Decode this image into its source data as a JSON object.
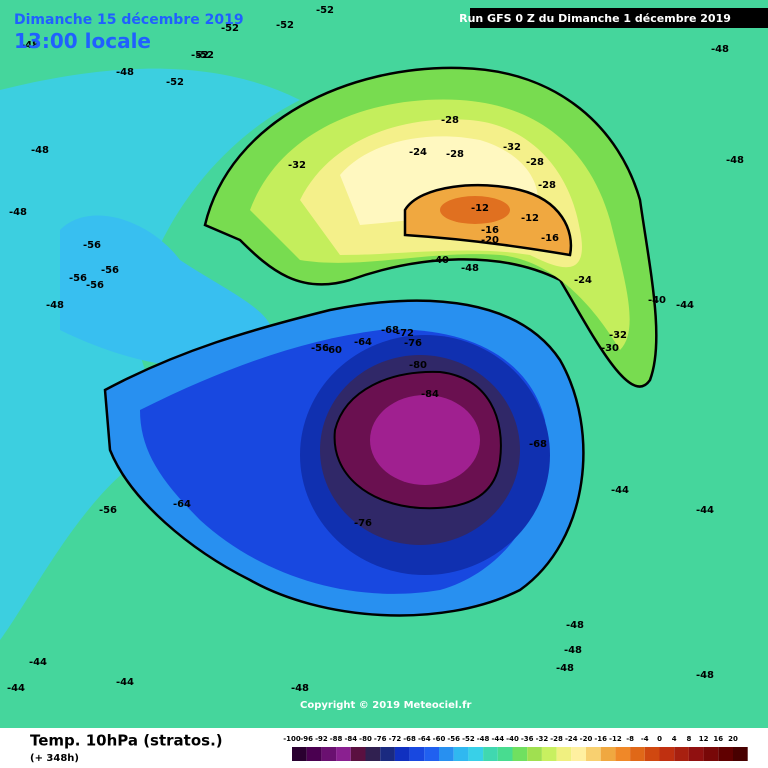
{
  "header": {
    "date": "Dimanche 15 décembre 2019",
    "time": "13:00 locale",
    "run": "Run GFS 0 Z du Dimanche 1 décembre 2019"
  },
  "map": {
    "copyright": "Copyright © 2019 Meteociel.fr",
    "labels": [
      "-52",
      "-52",
      "-52",
      "-48",
      "-48",
      "-48",
      "-48",
      "-48",
      "-52",
      "-52",
      "-52",
      "-56",
      "-56",
      "-56",
      "-56",
      "-28",
      "-24",
      "-28",
      "-32",
      "-32",
      "-28",
      "-28",
      "-12",
      "-12",
      "-16",
      "-16",
      "-20",
      "-24",
      "-40",
      "-40",
      "-32",
      "-30",
      "-48",
      "-44",
      "-68",
      "-72",
      "-76",
      "-60",
      "-56",
      "-64",
      "-80",
      "-84",
      "-68",
      "-64",
      "-76",
      "-56",
      "-48",
      "-48",
      "-44",
      "-44",
      "-44",
      "-44",
      "-48",
      "-48",
      "-48",
      "-44",
      "-48",
      "-48"
    ]
  },
  "footer": {
    "title": "Temp. 10hPa (stratos.)",
    "lead": "(+ 348h)"
  },
  "colorbar": {
    "labels": [
      "-100",
      "-96",
      "-92",
      "-88",
      "-84",
      "-80",
      "-76",
      "-72",
      "-68",
      "-64",
      "-60",
      "-56",
      "-52",
      "-48",
      "-44",
      "-40",
      "-36",
      "-32",
      "-28",
      "-24",
      "-20",
      "-16",
      "-12",
      "-8",
      "-4",
      "0",
      "4",
      "8",
      "12",
      "16",
      "20"
    ],
    "colors": [
      "#2a0030",
      "#4a0050",
      "#6a1070",
      "#8a2090",
      "#5a1040",
      "#302050",
      "#1a2a80",
      "#1030c0",
      "#1848e0",
      "#2060f0",
      "#2890f0",
      "#30b8f0",
      "#38d0e8",
      "#40d8b0",
      "#48dc90",
      "#70e060",
      "#a0e050",
      "#c8f060",
      "#f0f080",
      "#fff0a0",
      "#f8d070",
      "#f0a840",
      "#f08828",
      "#e06818",
      "#d04810",
      "#c03010",
      "#a82010",
      "#901010",
      "#780808",
      "#600000",
      "#480000"
    ]
  }
}
